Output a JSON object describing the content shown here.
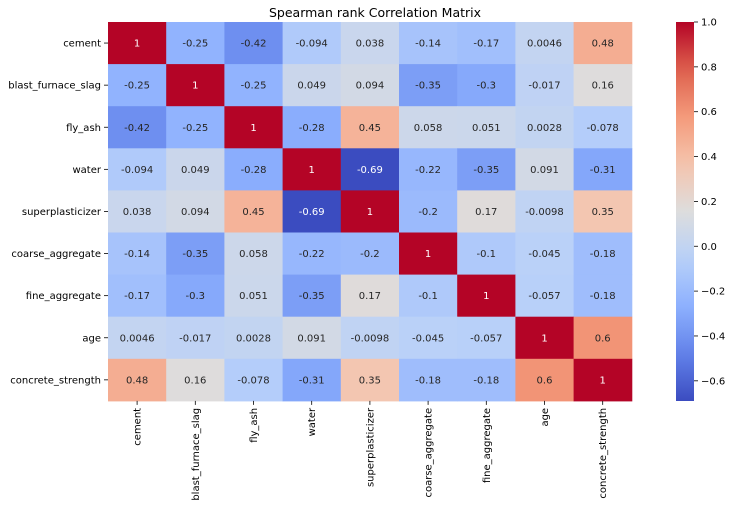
{
  "chart_data": {
    "type": "heatmap",
    "title": "Spearman rank Correlation Matrix",
    "labels": [
      "cement",
      "blast_furnace_slag",
      "fly_ash",
      "water",
      "superplasticizer",
      "coarse_aggregate",
      "fine_aggregate",
      "age",
      "concrete_strength"
    ],
    "value_labels": [
      [
        "1",
        "-0.25",
        "-0.42",
        "-0.094",
        "0.038",
        "-0.14",
        "-0.17",
        "0.0046",
        "0.48"
      ],
      [
        "-0.25",
        "1",
        "-0.25",
        "0.049",
        "0.094",
        "-0.35",
        "-0.3",
        "-0.017",
        "0.16"
      ],
      [
        "-0.42",
        "-0.25",
        "1",
        "-0.28",
        "0.45",
        "0.058",
        "0.051",
        "0.0028",
        "-0.078"
      ],
      [
        "-0.094",
        "0.049",
        "-0.28",
        "1",
        "-0.69",
        "-0.22",
        "-0.35",
        "0.091",
        "-0.31"
      ],
      [
        "0.038",
        "0.094",
        "0.45",
        "-0.69",
        "1",
        "-0.2",
        "0.17",
        "-0.0098",
        "0.35"
      ],
      [
        "-0.14",
        "-0.35",
        "0.058",
        "-0.22",
        "-0.2",
        "1",
        "-0.1",
        "-0.045",
        "-0.18"
      ],
      [
        "-0.17",
        "-0.3",
        "0.051",
        "-0.35",
        "0.17",
        "-0.1",
        "1",
        "-0.057",
        "-0.18"
      ],
      [
        "0.0046",
        "-0.017",
        "0.0028",
        "0.091",
        "-0.0098",
        "-0.045",
        "-0.057",
        "1",
        "0.6"
      ],
      [
        "0.48",
        "0.16",
        "-0.078",
        "-0.31",
        "0.35",
        "-0.18",
        "-0.18",
        "0.6",
        "1"
      ]
    ],
    "colormap": "coolwarm",
    "vmin": -0.69,
    "vmax": 1.0,
    "colorbar_ticks": [
      "1.0",
      "0.8",
      "0.6",
      "0.4",
      "0.2",
      "0.0",
      "−0.2",
      "−0.4",
      "−0.6"
    ],
    "colorbar_tick_values": [
      1.0,
      0.8,
      0.6,
      0.4,
      0.2,
      0.0,
      -0.2,
      -0.4,
      -0.6
    ]
  }
}
